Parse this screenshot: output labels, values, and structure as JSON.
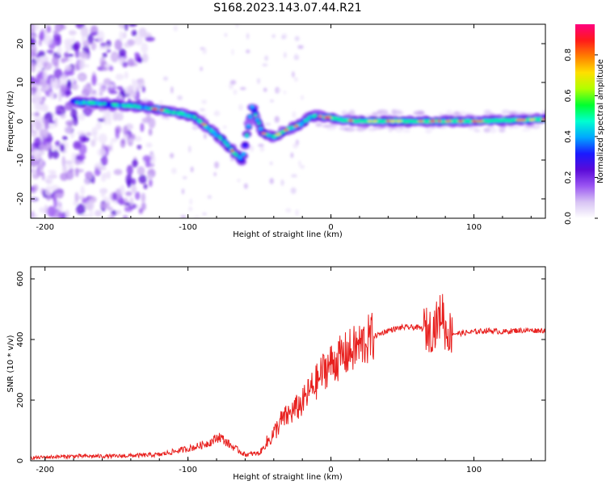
{
  "title": "S168.2023.143.07.44.R21",
  "chart_data": [
    {
      "type": "heatmap",
      "xlabel": "Height of straight line (km)",
      "ylabel": "Frequency (Hz)",
      "xlim": [
        -210,
        150
      ],
      "ylim": [
        -25,
        25
      ],
      "xticks": [
        -200,
        -100,
        0,
        100
      ],
      "yticks": [
        -20,
        -10,
        0,
        10,
        20
      ],
      "colorbar": {
        "label": "Normalized spectral amplitude",
        "range": [
          0,
          0.95
        ],
        "ticks": [
          0.0,
          0.2,
          0.4,
          0.6,
          0.8
        ],
        "colors": [
          "#ffffff",
          "#d8c4f4",
          "#9a55f2",
          "#5a0ad8",
          "#1a1aff",
          "#00a8ff",
          "#00ffd0",
          "#00ff30",
          "#b0ff00",
          "#ffe000",
          "#ff8000",
          "#ff1a1a",
          "#ff007f"
        ]
      },
      "trace": {
        "x": [
          -180,
          -160,
          -140,
          -120,
          -105,
          -95,
          -85,
          -75,
          -68,
          -62,
          -55,
          -48,
          -40,
          -30,
          -22,
          -15,
          -10,
          -5,
          0,
          5,
          10,
          20,
          40,
          60,
          80,
          100,
          120,
          150
        ],
        "y": [
          5,
          4.5,
          4,
          3,
          2,
          1,
          -2,
          -5,
          -8,
          -10,
          4,
          -3,
          -4,
          -2,
          -1,
          1,
          1.5,
          1,
          1,
          0.5,
          0.2,
          0,
          0,
          0,
          0,
          0,
          0.2,
          0.5
        ]
      }
    },
    {
      "type": "line",
      "xlabel": "Height of straight line (km)",
      "ylabel": "SNR (10 * v/v)",
      "xlim": [
        -210,
        150
      ],
      "ylim": [
        0,
        640
      ],
      "xticks": [
        -200,
        -100,
        0,
        100
      ],
      "yticks": [
        0,
        200,
        400,
        600
      ],
      "series": [
        {
          "color": "#e8201e",
          "x": [
            -210,
            -180,
            -150,
            -120,
            -105,
            -95,
            -85,
            -78,
            -70,
            -60,
            -50,
            -40,
            -35,
            -30,
            -25,
            -20,
            -15,
            -10,
            -5,
            0,
            10,
            20,
            30,
            40,
            50,
            60,
            70,
            75,
            78,
            80,
            85,
            90,
            100,
            110,
            120,
            130,
            140,
            150
          ],
          "y": [
            10,
            15,
            15,
            20,
            35,
            45,
            60,
            80,
            50,
            20,
            25,
            90,
            130,
            150,
            170,
            190,
            230,
            260,
            300,
            320,
            350,
            380,
            410,
            430,
            440,
            440,
            430,
            460,
            500,
            430,
            420,
            420,
            425,
            430,
            425,
            430,
            430,
            430
          ]
        }
      ]
    }
  ]
}
